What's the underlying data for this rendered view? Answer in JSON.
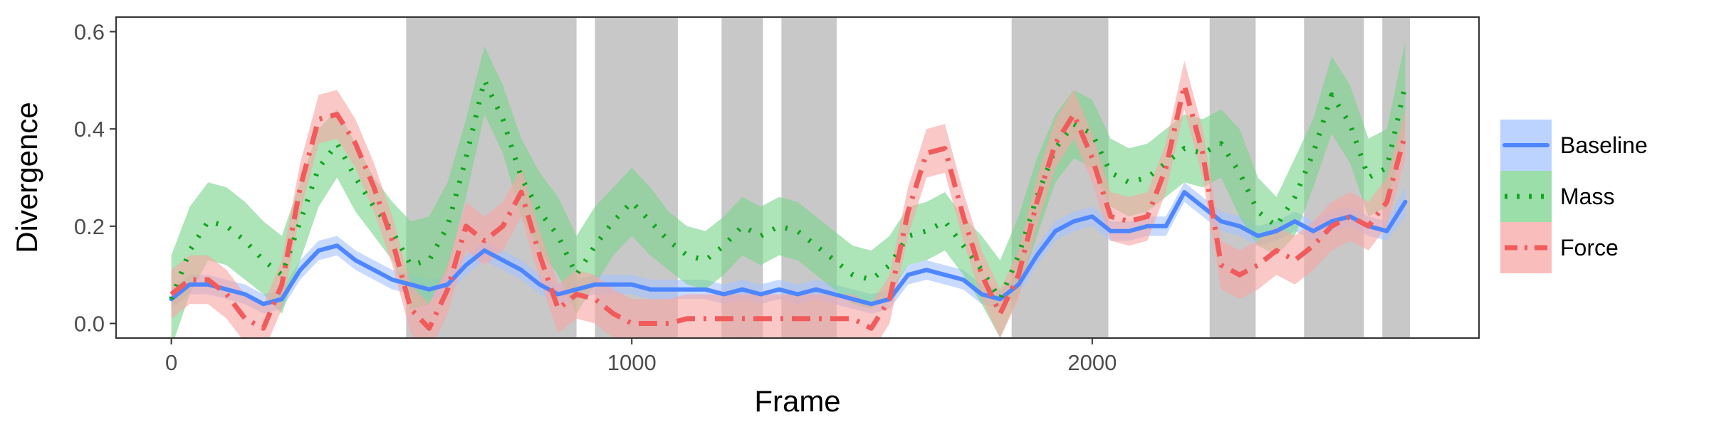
{
  "chart_data": {
    "type": "line",
    "title": "",
    "xlabel": "Frame",
    "ylabel": "Divergence",
    "xlim": [
      -120,
      2840
    ],
    "ylim": [
      -0.03,
      0.63
    ],
    "x_ticks": [
      0,
      1000,
      2000
    ],
    "x_tick_labels": [
      "0",
      "1000",
      "2000"
    ],
    "y_ticks": [
      0.0,
      0.2,
      0.4,
      0.6
    ],
    "y_tick_labels": [
      "0.0",
      "0.2",
      "0.4",
      "0.6"
    ],
    "grid": false,
    "legend": {
      "position": "right",
      "entries": [
        "Baseline",
        "Mass",
        "Force"
      ]
    },
    "shaded_regions": [
      [
        510,
        880
      ],
      [
        920,
        1100
      ],
      [
        1195,
        1285
      ],
      [
        1325,
        1445
      ],
      [
        1825,
        2035
      ],
      [
        2255,
        2355
      ],
      [
        2460,
        2590
      ],
      [
        2630,
        2690
      ]
    ],
    "x": [
      0,
      40,
      80,
      120,
      160,
      200,
      240,
      280,
      320,
      360,
      400,
      440,
      480,
      520,
      560,
      600,
      640,
      680,
      720,
      760,
      800,
      840,
      880,
      920,
      960,
      1000,
      1040,
      1080,
      1120,
      1160,
      1200,
      1240,
      1280,
      1320,
      1360,
      1400,
      1440,
      1480,
      1520,
      1560,
      1600,
      1640,
      1680,
      1720,
      1760,
      1800,
      1840,
      1880,
      1920,
      1960,
      2000,
      2040,
      2080,
      2120,
      2160,
      2200,
      2240,
      2280,
      2320,
      2360,
      2400,
      2440,
      2480,
      2520,
      2560,
      2600,
      2640,
      2680
    ],
    "series": [
      {
        "name": "Baseline",
        "color": "#4d86ff",
        "band_color": "#a6c3ff",
        "dash": "solid",
        "values": [
          0.05,
          0.08,
          0.08,
          0.07,
          0.06,
          0.04,
          0.05,
          0.11,
          0.15,
          0.16,
          0.13,
          0.11,
          0.09,
          0.08,
          0.07,
          0.08,
          0.12,
          0.15,
          0.13,
          0.11,
          0.08,
          0.06,
          0.07,
          0.08,
          0.08,
          0.08,
          0.07,
          0.07,
          0.07,
          0.07,
          0.06,
          0.07,
          0.06,
          0.07,
          0.06,
          0.07,
          0.06,
          0.05,
          0.04,
          0.05,
          0.1,
          0.11,
          0.1,
          0.09,
          0.06,
          0.05,
          0.08,
          0.14,
          0.19,
          0.21,
          0.22,
          0.19,
          0.19,
          0.2,
          0.2,
          0.27,
          0.24,
          0.21,
          0.2,
          0.18,
          0.19,
          0.21,
          0.19,
          0.21,
          0.22,
          0.2,
          0.19,
          0.25
        ],
        "lower": [
          0.03,
          0.06,
          0.06,
          0.05,
          0.04,
          0.02,
          0.03,
          0.09,
          0.13,
          0.14,
          0.11,
          0.09,
          0.07,
          0.06,
          0.05,
          0.06,
          0.1,
          0.13,
          0.11,
          0.09,
          0.06,
          0.04,
          0.05,
          0.06,
          0.06,
          0.06,
          0.05,
          0.05,
          0.05,
          0.05,
          0.04,
          0.05,
          0.04,
          0.05,
          0.04,
          0.05,
          0.04,
          0.03,
          0.02,
          0.03,
          0.08,
          0.09,
          0.08,
          0.07,
          0.04,
          0.03,
          0.06,
          0.12,
          0.17,
          0.19,
          0.2,
          0.17,
          0.17,
          0.18,
          0.18,
          0.25,
          0.22,
          0.19,
          0.18,
          0.16,
          0.17,
          0.19,
          0.17,
          0.19,
          0.2,
          0.18,
          0.17,
          0.22
        ],
        "upper": [
          0.07,
          0.1,
          0.1,
          0.09,
          0.08,
          0.06,
          0.07,
          0.13,
          0.17,
          0.18,
          0.15,
          0.13,
          0.11,
          0.1,
          0.09,
          0.1,
          0.14,
          0.17,
          0.15,
          0.13,
          0.1,
          0.08,
          0.09,
          0.1,
          0.1,
          0.1,
          0.09,
          0.09,
          0.09,
          0.09,
          0.08,
          0.09,
          0.08,
          0.09,
          0.08,
          0.09,
          0.08,
          0.07,
          0.06,
          0.07,
          0.12,
          0.13,
          0.12,
          0.11,
          0.08,
          0.07,
          0.1,
          0.16,
          0.21,
          0.23,
          0.24,
          0.21,
          0.21,
          0.22,
          0.22,
          0.29,
          0.26,
          0.23,
          0.22,
          0.2,
          0.21,
          0.23,
          0.21,
          0.23,
          0.24,
          0.22,
          0.21,
          0.28
        ]
      },
      {
        "name": "Mass",
        "color": "#0fa51c",
        "band_color": "#7ad38d",
        "dash": "dotted",
        "values": [
          0.05,
          0.15,
          0.21,
          0.2,
          0.17,
          0.13,
          0.1,
          0.21,
          0.32,
          0.37,
          0.3,
          0.24,
          0.19,
          0.12,
          0.13,
          0.2,
          0.34,
          0.5,
          0.42,
          0.3,
          0.23,
          0.18,
          0.1,
          0.16,
          0.21,
          0.25,
          0.21,
          0.17,
          0.14,
          0.13,
          0.16,
          0.2,
          0.18,
          0.2,
          0.19,
          0.16,
          0.13,
          0.1,
          0.09,
          0.12,
          0.18,
          0.19,
          0.21,
          0.16,
          0.11,
          0.05,
          0.14,
          0.26,
          0.36,
          0.41,
          0.39,
          0.31,
          0.29,
          0.3,
          0.33,
          0.36,
          0.35,
          0.37,
          0.31,
          0.23,
          0.2,
          0.26,
          0.35,
          0.47,
          0.41,
          0.3,
          0.32,
          0.49
        ],
        "lower": [
          -0.05,
          0.06,
          0.13,
          0.12,
          0.09,
          0.06,
          0.02,
          0.13,
          0.24,
          0.3,
          0.23,
          0.18,
          0.13,
          0.03,
          0.04,
          0.11,
          0.26,
          0.43,
          0.35,
          0.22,
          0.15,
          0.1,
          0.02,
          0.08,
          0.14,
          0.18,
          0.14,
          0.11,
          0.08,
          0.07,
          0.1,
          0.14,
          0.12,
          0.14,
          0.13,
          0.1,
          0.07,
          0.04,
          0.03,
          0.06,
          0.12,
          0.13,
          0.15,
          0.1,
          0.04,
          -0.03,
          0.06,
          0.18,
          0.29,
          0.34,
          0.32,
          0.24,
          0.22,
          0.23,
          0.26,
          0.29,
          0.28,
          0.3,
          0.22,
          0.16,
          0.14,
          0.18,
          0.28,
          0.39,
          0.33,
          0.22,
          0.24,
          0.4
        ],
        "upper": [
          0.14,
          0.24,
          0.29,
          0.28,
          0.25,
          0.21,
          0.18,
          0.29,
          0.4,
          0.44,
          0.37,
          0.3,
          0.25,
          0.21,
          0.22,
          0.29,
          0.42,
          0.57,
          0.49,
          0.38,
          0.31,
          0.26,
          0.18,
          0.24,
          0.28,
          0.32,
          0.28,
          0.23,
          0.2,
          0.19,
          0.22,
          0.26,
          0.24,
          0.26,
          0.25,
          0.22,
          0.19,
          0.16,
          0.15,
          0.18,
          0.24,
          0.25,
          0.27,
          0.22,
          0.18,
          0.13,
          0.22,
          0.34,
          0.43,
          0.48,
          0.46,
          0.38,
          0.36,
          0.37,
          0.4,
          0.43,
          0.42,
          0.44,
          0.4,
          0.3,
          0.26,
          0.34,
          0.42,
          0.55,
          0.49,
          0.38,
          0.4,
          0.58
        ]
      },
      {
        "name": "Force",
        "color": "#f15b5b",
        "band_color": "#f7a7a4",
        "dash": "dashdot",
        "values": [
          0.06,
          0.09,
          0.09,
          0.06,
          0.01,
          -0.01,
          0.08,
          0.28,
          0.42,
          0.43,
          0.37,
          0.28,
          0.17,
          0.03,
          -0.01,
          0.07,
          0.2,
          0.17,
          0.2,
          0.27,
          0.14,
          0.03,
          0.06,
          0.05,
          0.02,
          0.0,
          0.0,
          0.0,
          0.01,
          0.01,
          0.01,
          0.01,
          0.01,
          0.01,
          0.01,
          0.01,
          0.01,
          0.01,
          -0.01,
          0.05,
          0.23,
          0.35,
          0.36,
          0.22,
          0.1,
          0.02,
          0.1,
          0.25,
          0.37,
          0.43,
          0.34,
          0.22,
          0.21,
          0.22,
          0.32,
          0.49,
          0.35,
          0.12,
          0.1,
          0.12,
          0.15,
          0.13,
          0.16,
          0.2,
          0.22,
          0.2,
          0.25,
          0.39
        ],
        "lower": [
          0.01,
          0.04,
          0.04,
          0.01,
          -0.04,
          -0.06,
          0.03,
          0.23,
          0.37,
          0.38,
          0.32,
          0.23,
          0.12,
          -0.02,
          -0.06,
          0.02,
          0.15,
          0.12,
          0.15,
          0.22,
          0.09,
          -0.02,
          0.01,
          0.0,
          -0.03,
          -0.05,
          -0.05,
          -0.05,
          -0.04,
          -0.04,
          -0.04,
          -0.04,
          -0.04,
          -0.04,
          -0.04,
          -0.04,
          -0.04,
          -0.04,
          -0.06,
          0.0,
          0.18,
          0.3,
          0.31,
          0.17,
          0.05,
          -0.03,
          0.05,
          0.2,
          0.32,
          0.38,
          0.29,
          0.17,
          0.16,
          0.17,
          0.27,
          0.44,
          0.3,
          0.07,
          0.05,
          0.07,
          0.1,
          0.08,
          0.11,
          0.15,
          0.17,
          0.15,
          0.2,
          0.34
        ],
        "upper": [
          0.11,
          0.14,
          0.14,
          0.11,
          0.06,
          0.04,
          0.13,
          0.33,
          0.47,
          0.48,
          0.42,
          0.33,
          0.22,
          0.08,
          0.04,
          0.12,
          0.25,
          0.22,
          0.25,
          0.32,
          0.19,
          0.08,
          0.11,
          0.1,
          0.07,
          0.05,
          0.05,
          0.05,
          0.06,
          0.06,
          0.06,
          0.06,
          0.06,
          0.06,
          0.06,
          0.06,
          0.06,
          0.06,
          0.04,
          0.1,
          0.28,
          0.4,
          0.41,
          0.27,
          0.15,
          0.07,
          0.15,
          0.3,
          0.42,
          0.48,
          0.39,
          0.27,
          0.26,
          0.27,
          0.37,
          0.54,
          0.4,
          0.17,
          0.15,
          0.17,
          0.2,
          0.18,
          0.21,
          0.25,
          0.27,
          0.25,
          0.3,
          0.44
        ]
      }
    ]
  }
}
